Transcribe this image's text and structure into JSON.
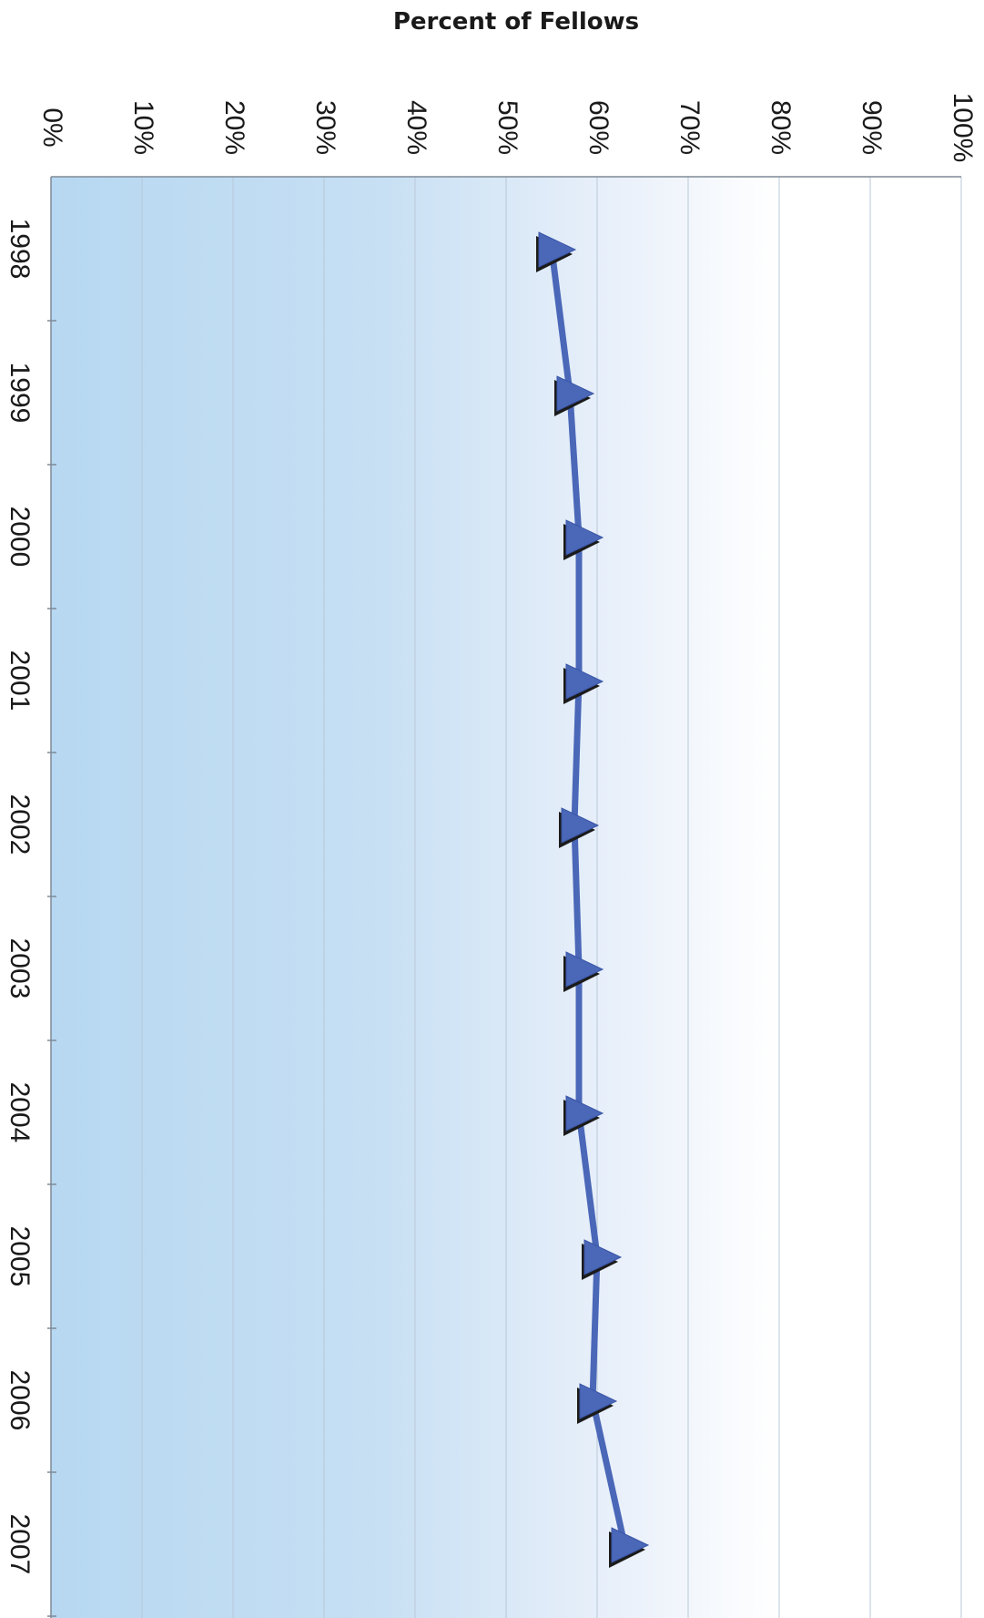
{
  "chart_data": {
    "type": "line",
    "title": "Percent of Fellows",
    "xlabel": "",
    "ylabel": "",
    "categories": [
      "1998",
      "1999",
      "2000",
      "2001",
      "2002",
      "2003",
      "2004",
      "2005",
      "2006",
      "2007"
    ],
    "series": [
      {
        "values": [
          55,
          57,
          58,
          58,
          57.5,
          58,
          58,
          60,
          59.5,
          63
        ],
        "color": "#4a67b8",
        "marker": "triangle"
      }
    ],
    "ylim": [
      0,
      100
    ],
    "yticks": [
      "0%",
      "10%",
      "20%",
      "30%",
      "40%",
      "50%",
      "60%",
      "70%",
      "80%",
      "90%",
      "100%"
    ],
    "grid": true,
    "orientation": "rotated-90",
    "background": "gradient light blue to white"
  }
}
